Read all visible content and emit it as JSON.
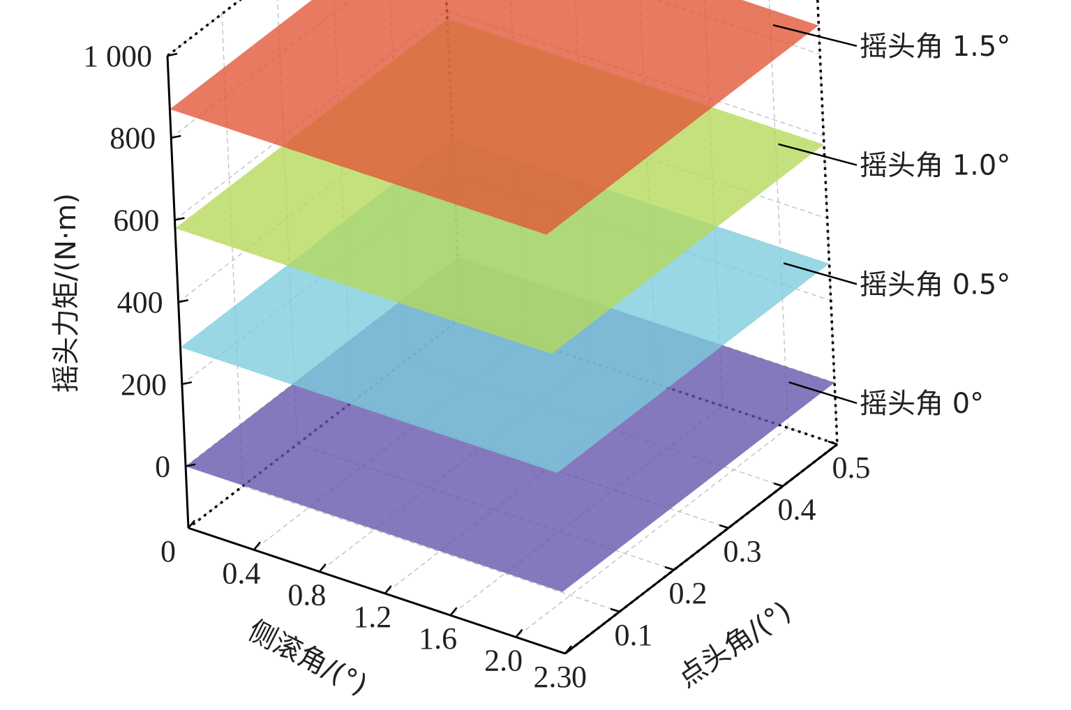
{
  "chart_data": {
    "type": "surface3d",
    "title": "",
    "xlabel": "侧滚角/(°)",
    "ylabel": "点头角/(°)",
    "zlabel": "摇头力矩/(N·m)",
    "x_ticks": [
      "0",
      "0.4",
      "0.8",
      "1.2",
      "1.6",
      "2.0",
      "2.3"
    ],
    "x_tick_values": [
      0,
      0.4,
      0.8,
      1.2,
      1.6,
      2.0,
      2.3
    ],
    "y_ticks": [
      "0",
      "0.1",
      "0.2",
      "0.3",
      "0.4",
      "0.5"
    ],
    "y_tick_values": [
      0,
      0.1,
      0.2,
      0.3,
      0.4,
      0.5
    ],
    "z_ticks": [
      "0",
      "200",
      "400",
      "600",
      "800",
      "1 000"
    ],
    "z_tick_values": [
      0,
      200,
      400,
      600,
      800,
      1000
    ],
    "xlim": [
      0,
      2.3
    ],
    "ylim": [
      0,
      0.5
    ],
    "zlim": [
      -150,
      1000
    ],
    "grid": true,
    "series": [
      {
        "name": "摇头角 0°",
        "value": 0,
        "color": "#6352ab"
      },
      {
        "name": "摇头角 0.5°",
        "value": 290,
        "color": "#7cccdc"
      },
      {
        "name": "摇头角 1.0°",
        "value": 580,
        "color": "#b5d95a"
      },
      {
        "name": "摇头角 1.5°",
        "value": 870,
        "color": "#e15536"
      }
    ]
  }
}
